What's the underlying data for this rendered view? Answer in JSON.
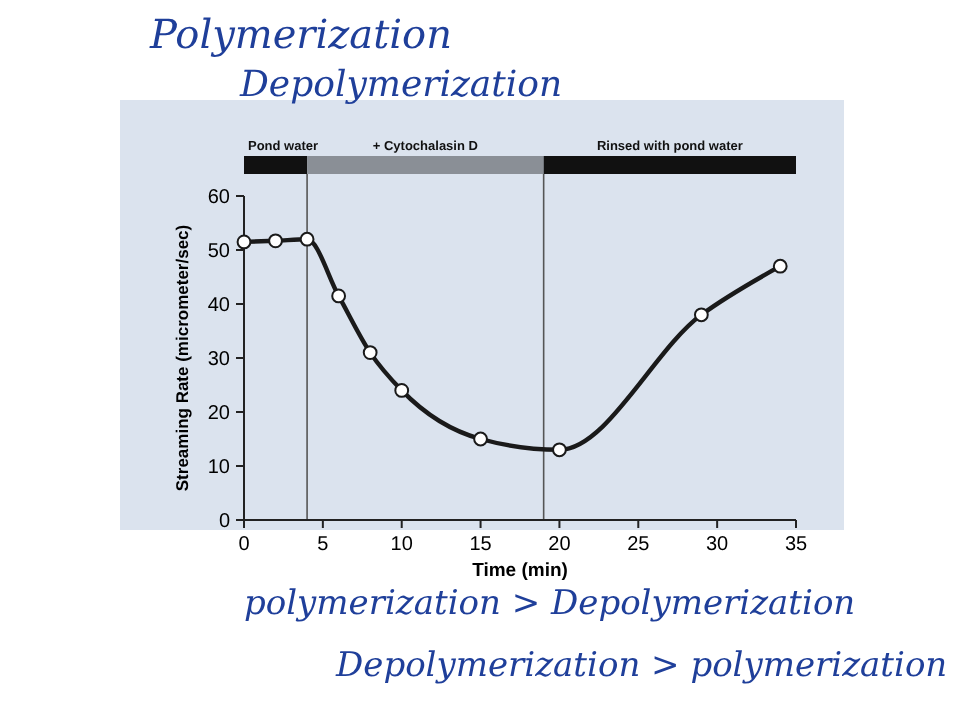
{
  "chart_data": {
    "type": "line",
    "xlabel": "Time (min)",
    "ylabel": "Streaming Rate (micrometer/sec)",
    "x": [
      0,
      2,
      4,
      6,
      8,
      10,
      15,
      20,
      29,
      34
    ],
    "series": [
      {
        "color": "#1a1a1a",
        "values": [
          51.5,
          51.7,
          52,
          41.5,
          31,
          24,
          15,
          13,
          38,
          47
        ]
      }
    ],
    "xlim": [
      0,
      35
    ],
    "ylim": [
      0,
      60
    ],
    "xticks": [
      0,
      5,
      10,
      15,
      20,
      25,
      30,
      35
    ],
    "yticks": [
      0,
      10,
      20,
      30,
      40,
      50,
      60
    ],
    "marker": "circle",
    "line_style": "solid",
    "grid": false,
    "ref_lines": [
      {
        "axis": "x",
        "value": 4,
        "color": "#555555"
      },
      {
        "axis": "x",
        "value": 19,
        "color": "#555555"
      }
    ],
    "annotations": [
      "Pond water",
      "+ Cytochalasin D",
      "Rinsed with pond water",
      "Polymerization",
      "Depolymerization",
      "polymerization > Depolymerization",
      "Depolymerization > polymerization"
    ]
  }
}
